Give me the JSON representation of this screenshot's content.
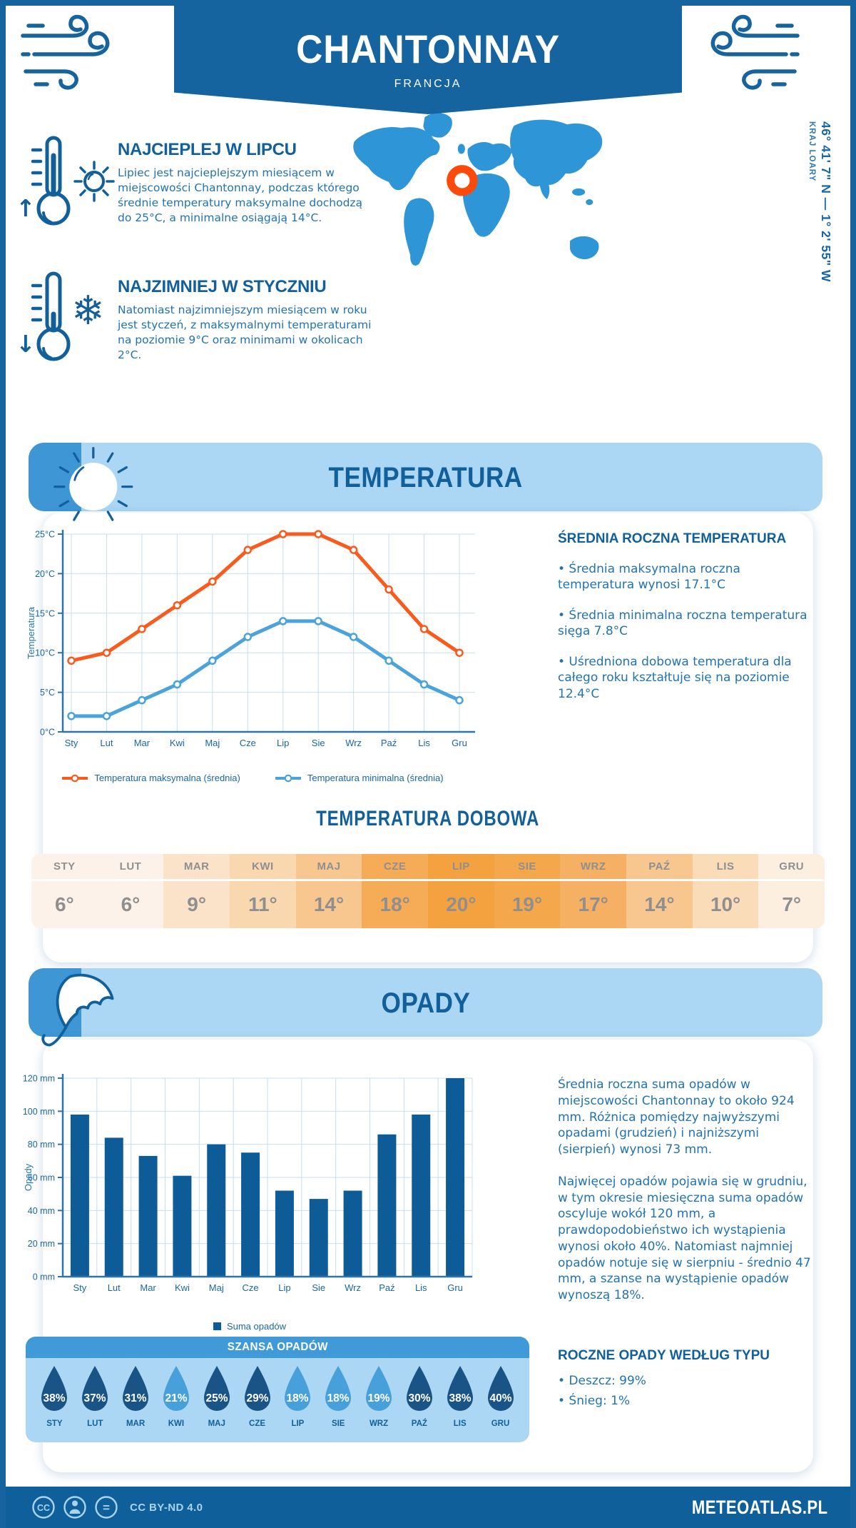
{
  "meta": {
    "title": "CHANTONNAY",
    "subtitle": "FRANCJA",
    "coordinates": "46° 41' 7\" N — 1° 2' 55\" W",
    "region": "KRAJ LOARY"
  },
  "intro": {
    "warm": {
      "title": "NAJCIEPLEJ W LIPCU",
      "text": "Lipiec jest najcieplejszym miesiącem w miejscowości Chantonnay, podczas którego średnie temperatury maksymalne dochodzą do 25°C, a minimalne osiągają 14°C."
    },
    "cold": {
      "title": "NAJZIMNIEJ W STYCZNIU",
      "text": "Natomiast najzimniejszym miesiącem w roku jest styczeń, z maksymalnymi temperaturami na poziomie 9°C oraz minimami w okolicach 2°C."
    }
  },
  "temperature_section": {
    "banner_title": "TEMPERATURA",
    "summary_heading": "ŚREDNIA ROCZNA TEMPERATURA",
    "summary_bullets": [
      "Średnia maksymalna roczna temperatura wynosi 17.1°C",
      "Średnia minimalna roczna temperatura sięga 7.8°C",
      "Uśredniona dobowa temperatura dla całego roku kształtuje się na poziomie 12.4°C"
    ],
    "daily_title": "TEMPERATURA DOBOWA",
    "daily_columns": [
      {
        "month": "STY",
        "value": "6°",
        "bg": "#fdf2e9"
      },
      {
        "month": "LUT",
        "value": "6°",
        "bg": "#fdf2e9"
      },
      {
        "month": "MAR",
        "value": "9°",
        "bg": "#fbe3c9"
      },
      {
        "month": "KWI",
        "value": "11°",
        "bg": "#fad8af"
      },
      {
        "month": "MAJ",
        "value": "14°",
        "bg": "#f8c68f"
      },
      {
        "month": "CZE",
        "value": "18°",
        "bg": "#f6ab57"
      },
      {
        "month": "LIP",
        "value": "20°",
        "bg": "#f4a23f"
      },
      {
        "month": "SIE",
        "value": "19°",
        "bg": "#f5a74b"
      },
      {
        "month": "WRZ",
        "value": "17°",
        "bg": "#f6b063"
      },
      {
        "month": "PAŹ",
        "value": "14°",
        "bg": "#f8c68f"
      },
      {
        "month": "LIS",
        "value": "10°",
        "bg": "#fadcb8"
      },
      {
        "month": "GRU",
        "value": "7°",
        "bg": "#fcefe0"
      }
    ]
  },
  "precipitation_section": {
    "banner_title": "OPADY",
    "paragraphs": [
      "Średnia roczna suma opadów w miejscowości Chantonnay to około 924 mm. Różnica pomiędzy najwyższymi opadami (grudzień) i najniższymi (sierpień) wynosi 73 mm.",
      "Najwięcej opadów pojawia się w grudniu, w tym okresie miesięczna suma opadów oscyluje wokół 120 mm, a prawdopodobieństwo ich wystąpienia wynosi około 40%. Natomiast najmniej opadów notuje się w sierpniu - średnio 47 mm, a szanse na wystąpienie opadów wynoszą 18%."
    ],
    "chance_title": "SZANSA OPADÓW",
    "chance_items": [
      {
        "month": "STY",
        "value": "38%",
        "dark": true
      },
      {
        "month": "LUT",
        "value": "37%",
        "dark": true
      },
      {
        "month": "MAR",
        "value": "31%",
        "dark": true
      },
      {
        "month": "KWI",
        "value": "21%",
        "dark": false
      },
      {
        "month": "MAJ",
        "value": "25%",
        "dark": true
      },
      {
        "month": "CZE",
        "value": "29%",
        "dark": true
      },
      {
        "month": "LIP",
        "value": "18%",
        "dark": false
      },
      {
        "month": "SIE",
        "value": "18%",
        "dark": false
      },
      {
        "month": "WRZ",
        "value": "19%",
        "dark": false
      },
      {
        "month": "PAŹ",
        "value": "30%",
        "dark": true
      },
      {
        "month": "LIS",
        "value": "38%",
        "dark": true
      },
      {
        "month": "GRU",
        "value": "40%",
        "dark": true
      }
    ],
    "types_heading": "ROCZNE OPADY WEDŁUG TYPU",
    "types_bullets": [
      "Deszcz: 99%",
      "Śnieg: 1%"
    ]
  },
  "footer": {
    "license": "CC BY-ND 4.0",
    "site": "METEOATLAS.PL"
  },
  "colors": {
    "brand": "#15639f",
    "banner_light": "#abd7f5",
    "corner_blue": "#3e96d5",
    "heading": "#11609b",
    "body_text": "#2273b1",
    "axis": "#2e74a8",
    "grid": "#c9ddee",
    "tick_label": "#1a67a5",
    "max_line": "#f95b1e",
    "min_line": "#4aa3db",
    "bar": "#0d5c97",
    "map_land": "#2e95d7",
    "marker": "#fb4a0c",
    "table_text": "#8f8f8f",
    "drop_dark": "#1a5486",
    "drop_light": "#47a0d9",
    "chance_header": "#3f9ad7",
    "footer_text": "#a9d4f0"
  },
  "chart_data": [
    {
      "type": "line",
      "title": "",
      "categories": [
        "Sty",
        "Lut",
        "Mar",
        "Kwi",
        "Maj",
        "Cze",
        "Lip",
        "Sie",
        "Wrz",
        "Paź",
        "Lis",
        "Gru"
      ],
      "series": [
        {
          "name": "Temperatura maksymalna (średnia)",
          "color": "#f95b1e",
          "values": [
            9,
            10,
            13,
            16,
            19,
            23,
            25,
            25,
            23,
            18,
            13,
            10
          ]
        },
        {
          "name": "Temperatura minimalna (średnia)",
          "color": "#4aa3db",
          "values": [
            2,
            2,
            4,
            6,
            9,
            12,
            14,
            14,
            12,
            9,
            6,
            4
          ]
        }
      ],
      "xlabel": "",
      "ylabel": "Temperatura",
      "ylim": [
        0,
        25
      ],
      "ytick_step": 5,
      "ytick_suffix": "°C",
      "grid": true,
      "legend_position": "bottom"
    },
    {
      "type": "bar",
      "title": "",
      "categories": [
        "Sty",
        "Lut",
        "Mar",
        "Kwi",
        "Maj",
        "Cze",
        "Lip",
        "Sie",
        "Wrz",
        "Paź",
        "Lis",
        "Gru"
      ],
      "series": [
        {
          "name": "Suma opadów",
          "color": "#0d5c97",
          "values": [
            98,
            84,
            73,
            61,
            80,
            75,
            52,
            47,
            52,
            86,
            98,
            120
          ]
        }
      ],
      "xlabel": "",
      "ylabel": "Opady",
      "ylim": [
        0,
        120
      ],
      "ytick_step": 20,
      "ytick_suffix": " mm",
      "grid": true,
      "legend_position": "bottom"
    }
  ]
}
